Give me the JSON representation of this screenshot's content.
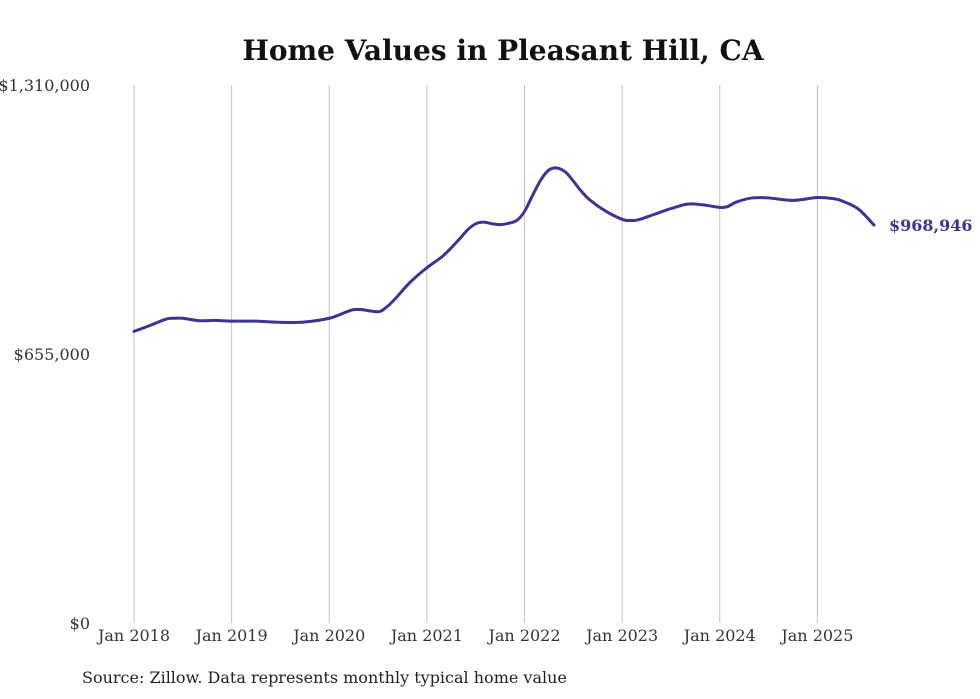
{
  "colors": {
    "series": "#3b3494",
    "grid": "#c4c4c4",
    "text": "#333333",
    "title": "#111111"
  },
  "footer": {
    "source": "Source: Zillow. Data represents monthly typical home value"
  },
  "chart_data": {
    "type": "line",
    "title": "Home Values in Pleasant Hill, CA",
    "xlabel": "",
    "ylabel": "",
    "ylim": [
      0,
      1310000
    ],
    "yticks": [
      {
        "value": 0,
        "label": "$0"
      },
      {
        "value": 655000,
        "label": "$655,000"
      },
      {
        "value": 1310000,
        "label": "$1,310,000"
      }
    ],
    "xlim": [
      2018.0,
      2025.58
    ],
    "xticks": [
      {
        "value": 2018,
        "label": "Jan 2018"
      },
      {
        "value": 2019,
        "label": "Jan 2019"
      },
      {
        "value": 2020,
        "label": "Jan 2020"
      },
      {
        "value": 2021,
        "label": "Jan 2021"
      },
      {
        "value": 2022,
        "label": "Jan 2022"
      },
      {
        "value": 2023,
        "label": "Jan 2023"
      },
      {
        "value": 2024,
        "label": "Jan 2024"
      },
      {
        "value": 2025,
        "label": "Jan 2025"
      }
    ],
    "grid": "vertical",
    "legend": "none",
    "end_label": "$968,946",
    "series": [
      {
        "name": "Typical home value",
        "x": [
          2018.0,
          2018.17,
          2018.33,
          2018.42,
          2018.5,
          2018.67,
          2018.83,
          2019.0,
          2019.25,
          2019.5,
          2019.75,
          2020.0,
          2020.17,
          2020.25,
          2020.33,
          2020.5,
          2020.58,
          2020.67,
          2020.83,
          2021.0,
          2021.17,
          2021.33,
          2021.42,
          2021.5,
          2021.58,
          2021.67,
          2021.75,
          2021.83,
          2021.92,
          2022.0,
          2022.08,
          2022.17,
          2022.25,
          2022.33,
          2022.42,
          2022.5,
          2022.58,
          2022.67,
          2022.83,
          2023.0,
          2023.08,
          2023.17,
          2023.33,
          2023.5,
          2023.67,
          2023.83,
          2024.0,
          2024.08,
          2024.17,
          2024.33,
          2024.5,
          2024.75,
          2025.0,
          2025.17,
          2025.25,
          2025.42,
          2025.58
        ],
        "values": [
          710000,
          725000,
          740000,
          742000,
          742000,
          736000,
          737000,
          735000,
          735000,
          732000,
          733000,
          742000,
          757000,
          763000,
          763000,
          758000,
          768000,
          788000,
          830000,
          865000,
          895000,
          934000,
          958000,
          972000,
          976000,
          972000,
          970000,
          973000,
          980000,
          1002000,
          1040000,
          1080000,
          1103000,
          1108000,
          1098000,
          1076000,
          1052000,
          1030000,
          1003000,
          983000,
          980000,
          982000,
          995000,
          1009000,
          1020000,
          1018000,
          1012000,
          1014000,
          1025000,
          1035000,
          1035000,
          1029000,
          1036000,
          1033000,
          1028000,
          1008000,
          968946
        ]
      }
    ]
  }
}
